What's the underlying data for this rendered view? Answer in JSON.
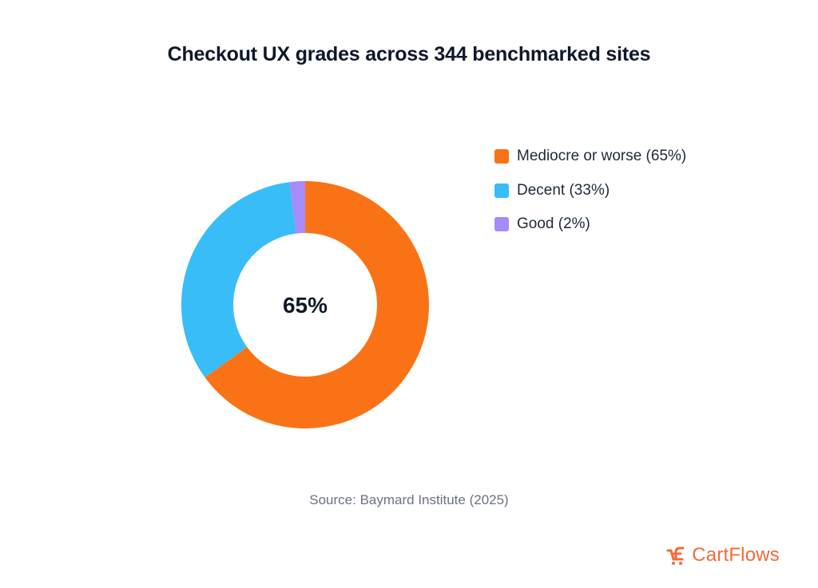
{
  "title": "Checkout UX grades across 344 benchmarked sites",
  "source": "Source: Baymard Institute (2025)",
  "brand": {
    "name": "CartFlows",
    "color": "#f26b3a"
  },
  "chart_data": {
    "type": "pie",
    "title": "Checkout UX grades across 344 benchmarked sites",
    "center_label": "65%",
    "legend_position": "right",
    "slices": [
      {
        "label": "Mediocre or worse (65%)",
        "value": 65,
        "color": "#f97316"
      },
      {
        "label": "Decent (33%)",
        "value": 33,
        "color": "#38bdf8"
      },
      {
        "label": "Good (2%)",
        "value": 2,
        "color": "#a78bfa"
      }
    ]
  }
}
